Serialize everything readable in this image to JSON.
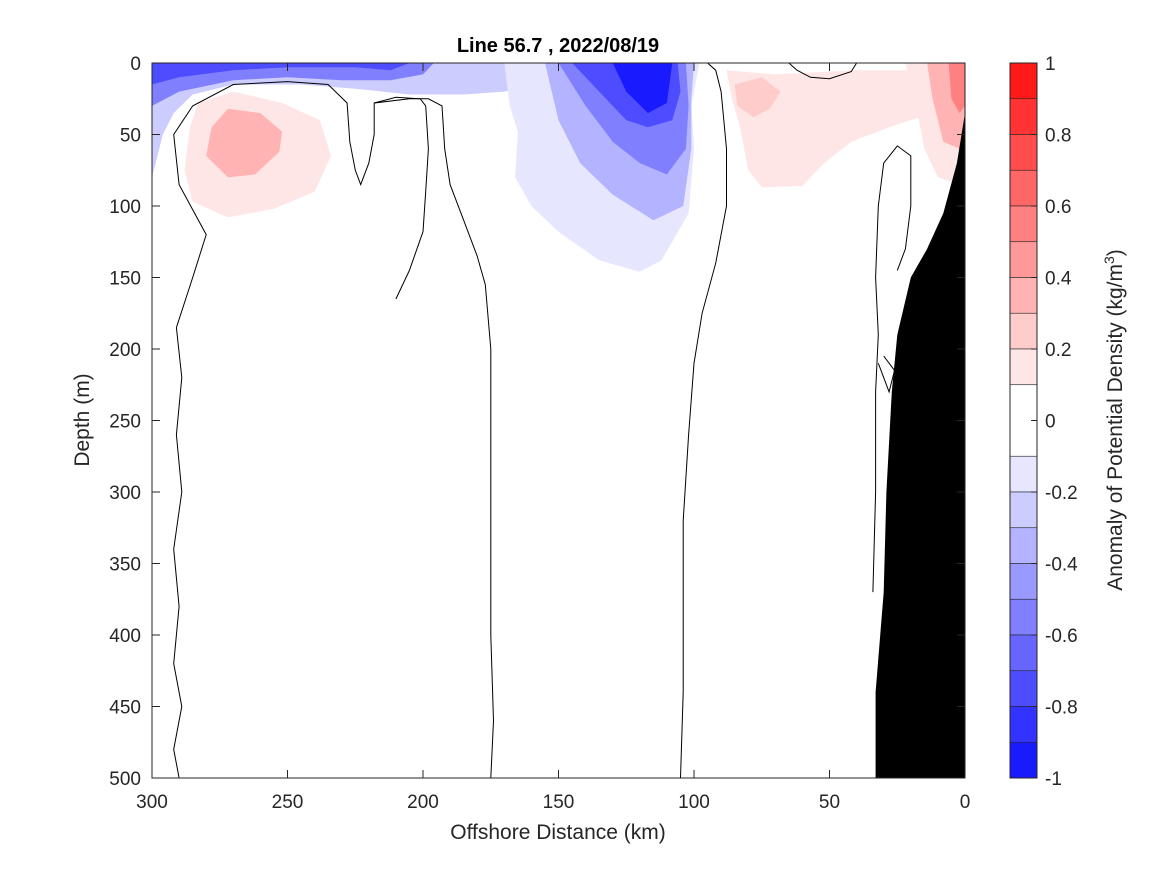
{
  "chart_data": {
    "type": "heatmap",
    "title": "Line 56.7 , 2022/08/19",
    "xlabel": "Offshore Distance (km)",
    "ylabel": "Depth (m)",
    "xlim": [
      300,
      0
    ],
    "ylim": [
      500,
      0
    ],
    "x_reversed": true,
    "y_reversed": true,
    "x_ticks": [
      300,
      250,
      200,
      150,
      100,
      50,
      0
    ],
    "y_ticks": [
      0,
      50,
      100,
      150,
      200,
      250,
      300,
      350,
      400,
      450,
      500
    ],
    "colorbar": {
      "label_main": "Anomaly of Potential Density (kg/m",
      "label_sup": "3",
      "label_end": ")",
      "range": [
        -1,
        1
      ],
      "tick_labels": [
        "1",
        "0.8",
        "0.6",
        "0.4",
        "0.2",
        "0",
        "-0.2",
        "-0.4",
        "-0.6",
        "-0.8",
        "-1"
      ],
      "tick_values": [
        1,
        0.8,
        0.6,
        0.4,
        0.2,
        0,
        -0.2,
        -0.4,
        -0.6,
        -0.8,
        -1
      ],
      "levels": [
        {
          "from": 0.9,
          "to": 1.0,
          "color": "#ff1a1a"
        },
        {
          "from": 0.8,
          "to": 0.9,
          "color": "#ff3333"
        },
        {
          "from": 0.7,
          "to": 0.8,
          "color": "#ff4d4d"
        },
        {
          "from": 0.6,
          "to": 0.7,
          "color": "#ff6666"
        },
        {
          "from": 0.5,
          "to": 0.6,
          "color": "#ff8080"
        },
        {
          "from": 0.4,
          "to": 0.5,
          "color": "#ff9999"
        },
        {
          "from": 0.3,
          "to": 0.4,
          "color": "#ffb3b3"
        },
        {
          "from": 0.2,
          "to": 0.3,
          "color": "#ffcccc"
        },
        {
          "from": 0.1,
          "to": 0.2,
          "color": "#ffe6e6"
        },
        {
          "from": -0.1,
          "to": 0.1,
          "color": "#ffffff"
        },
        {
          "from": -0.2,
          "to": -0.1,
          "color": "#e6e6ff"
        },
        {
          "from": -0.3,
          "to": -0.2,
          "color": "#ccccff"
        },
        {
          "from": -0.4,
          "to": -0.3,
          "color": "#b3b3ff"
        },
        {
          "from": -0.5,
          "to": -0.4,
          "color": "#9999ff"
        },
        {
          "from": -0.6,
          "to": -0.5,
          "color": "#8080ff"
        },
        {
          "from": -0.7,
          "to": -0.6,
          "color": "#6666ff"
        },
        {
          "from": -0.8,
          "to": -0.7,
          "color": "#4d4dff"
        },
        {
          "from": -0.9,
          "to": -0.8,
          "color": "#3333ff"
        },
        {
          "from": -1.0,
          "to": -0.9,
          "color": "#1a1aff"
        }
      ]
    },
    "anomaly_regions": [
      {
        "value": -0.25,
        "color": "#ccccff",
        "points": [
          [
            300,
            0
          ],
          [
            300,
            80
          ],
          [
            296,
            50
          ],
          [
            292,
            35
          ],
          [
            285,
            22
          ],
          [
            270,
            15
          ],
          [
            245,
            15
          ],
          [
            225,
            18
          ],
          [
            205,
            22
          ],
          [
            185,
            22
          ],
          [
            170,
            20
          ],
          [
            160,
            15
          ],
          [
            150,
            0
          ]
        ]
      },
      {
        "value": -0.5,
        "color": "#8080ff",
        "points": [
          [
            300,
            0
          ],
          [
            300,
            30
          ],
          [
            290,
            20
          ],
          [
            270,
            12
          ],
          [
            250,
            10
          ],
          [
            230,
            12
          ],
          [
            212,
            12
          ],
          [
            200,
            8
          ],
          [
            196,
            0
          ]
        ]
      },
      {
        "value": -0.75,
        "color": "#4d4dff",
        "points": [
          [
            300,
            0
          ],
          [
            300,
            15
          ],
          [
            290,
            10
          ],
          [
            270,
            5
          ],
          [
            250,
            3
          ],
          [
            225,
            3
          ],
          [
            212,
            5
          ],
          [
            205,
            0
          ]
        ]
      },
      {
        "value": -0.15,
        "color": "#e6e6ff",
        "points": [
          [
            170,
            0
          ],
          [
            168,
            30
          ],
          [
            165,
            48
          ],
          [
            166,
            80
          ],
          [
            160,
            100
          ],
          [
            150,
            118
          ],
          [
            135,
            138
          ],
          [
            120,
            146
          ],
          [
            112,
            138
          ],
          [
            102,
            105
          ],
          [
            100,
            60
          ],
          [
            101,
            30
          ],
          [
            98,
            0
          ]
        ]
      },
      {
        "value": -0.35,
        "color": "#b3b3ff",
        "points": [
          [
            155,
            0
          ],
          [
            150,
            40
          ],
          [
            142,
            70
          ],
          [
            130,
            92
          ],
          [
            115,
            110
          ],
          [
            104,
            100
          ],
          [
            101,
            60
          ],
          [
            101,
            25
          ],
          [
            100,
            0
          ]
        ]
      },
      {
        "value": -0.55,
        "color": "#8080ff",
        "points": [
          [
            150,
            0
          ],
          [
            140,
            30
          ],
          [
            130,
            55
          ],
          [
            120,
            70
          ],
          [
            110,
            78
          ],
          [
            103,
            60
          ],
          [
            102,
            30
          ],
          [
            103,
            0
          ]
        ]
      },
      {
        "value": -0.75,
        "color": "#4d4dff",
        "points": [
          [
            145,
            0
          ],
          [
            135,
            20
          ],
          [
            125,
            40
          ],
          [
            117,
            45
          ],
          [
            108,
            40
          ],
          [
            105,
            20
          ],
          [
            106,
            0
          ]
        ]
      },
      {
        "value": -0.9,
        "color": "#1a1aff",
        "points": [
          [
            130,
            0
          ],
          [
            125,
            20
          ],
          [
            117,
            35
          ],
          [
            110,
            28
          ],
          [
            108,
            0
          ]
        ]
      },
      {
        "value": 0.15,
        "color": "#ffe6e6",
        "points": [
          [
            286,
            45
          ],
          [
            288,
            75
          ],
          [
            285,
            97
          ],
          [
            272,
            108
          ],
          [
            255,
            102
          ],
          [
            240,
            90
          ],
          [
            234,
            65
          ],
          [
            238,
            40
          ],
          [
            252,
            28
          ],
          [
            270,
            20
          ],
          [
            283,
            28
          ]
        ]
      },
      {
        "value": 0.35,
        "color": "#ffb3b3",
        "points": [
          [
            278,
            45
          ],
          [
            280,
            65
          ],
          [
            272,
            80
          ],
          [
            262,
            78
          ],
          [
            253,
            62
          ],
          [
            252,
            48
          ],
          [
            260,
            35
          ],
          [
            272,
            32
          ]
        ]
      },
      {
        "value": 0.15,
        "color": "#ffe6e6",
        "points": [
          [
            88,
            5
          ],
          [
            86,
            25
          ],
          [
            83,
            45
          ],
          [
            80,
            75
          ],
          [
            75,
            87
          ],
          [
            60,
            86
          ],
          [
            52,
            70
          ],
          [
            42,
            55
          ],
          [
            28,
            45
          ],
          [
            12,
            35
          ],
          [
            0,
            25
          ],
          [
            0,
            5
          ],
          [
            40,
            5
          ],
          [
            70,
            8
          ]
        ]
      },
      {
        "value": 0.3,
        "color": "#ffcccc",
        "points": [
          [
            85,
            15
          ],
          [
            84,
            30
          ],
          [
            78,
            38
          ],
          [
            72,
            32
          ],
          [
            68,
            20
          ],
          [
            75,
            10
          ]
        ]
      },
      {
        "value": 0.2,
        "color": "#ffe6e6",
        "points": [
          [
            22,
            0
          ],
          [
            18,
            30
          ],
          [
            15,
            60
          ],
          [
            10,
            80
          ],
          [
            2,
            85
          ],
          [
            0,
            80
          ],
          [
            0,
            0
          ]
        ]
      },
      {
        "value": 0.4,
        "color": "#ffb3b3",
        "points": [
          [
            14,
            0
          ],
          [
            12,
            25
          ],
          [
            8,
            55
          ],
          [
            2,
            60
          ],
          [
            0,
            55
          ],
          [
            0,
            0
          ]
        ]
      },
      {
        "value": 0.55,
        "color": "#ff8080",
        "points": [
          [
            6,
            0
          ],
          [
            5,
            25
          ],
          [
            2,
            35
          ],
          [
            0,
            30
          ],
          [
            0,
            0
          ]
        ]
      }
    ],
    "zero_contours": [
      [
        [
          290,
          500
        ],
        [
          292,
          480
        ],
        [
          289,
          450
        ],
        [
          292,
          420
        ],
        [
          290,
          380
        ],
        [
          292,
          340
        ],
        [
          289,
          300
        ],
        [
          291,
          260
        ],
        [
          289,
          220
        ],
        [
          291,
          185
        ],
        [
          285,
          150
        ],
        [
          280,
          120
        ],
        [
          290,
          85
        ],
        [
          292,
          50
        ],
        [
          285,
          30
        ],
        [
          270,
          15
        ],
        [
          250,
          13
        ],
        [
          235,
          15
        ],
        [
          228,
          28
        ],
        [
          227,
          55
        ],
        [
          225,
          75
        ],
        [
          223,
          85
        ],
        [
          220,
          70
        ],
        [
          218,
          50
        ],
        [
          218,
          28
        ],
        [
          205,
          25
        ],
        [
          198,
          25
        ],
        [
          193,
          30
        ],
        [
          192,
          60
        ],
        [
          190,
          85
        ],
        [
          185,
          110
        ],
        [
          180,
          135
        ],
        [
          177,
          155
        ],
        [
          175,
          200
        ],
        [
          175,
          260
        ],
        [
          175,
          320
        ],
        [
          175,
          400
        ],
        [
          174,
          460
        ],
        [
          175,
          500
        ]
      ],
      [
        [
          210,
          165
        ],
        [
          205,
          145
        ],
        [
          200,
          118
        ],
        [
          199,
          90
        ],
        [
          198,
          60
        ],
        [
          199,
          30
        ],
        [
          201,
          25
        ],
        [
          210,
          24
        ],
        [
          218,
          28
        ]
      ],
      [
        [
          105,
          500
        ],
        [
          104,
          440
        ],
        [
          104,
          380
        ],
        [
          104,
          320
        ],
        [
          102,
          260
        ],
        [
          100,
          210
        ],
        [
          97,
          175
        ],
        [
          92,
          140
        ],
        [
          88,
          100
        ],
        [
          88,
          60
        ],
        [
          90,
          20
        ],
        [
          92,
          5
        ],
        [
          95,
          0
        ]
      ],
      [
        [
          65,
          0
        ],
        [
          62,
          5
        ],
        [
          57,
          10
        ],
        [
          50,
          11
        ],
        [
          42,
          6
        ],
        [
          40,
          0
        ]
      ],
      [
        [
          34,
          370
        ],
        [
          33,
          300
        ],
        [
          33,
          230
        ],
        [
          32,
          190
        ],
        [
          33,
          150
        ],
        [
          32,
          100
        ],
        [
          30,
          70
        ],
        [
          25,
          58
        ],
        [
          20,
          65
        ],
        [
          20,
          100
        ],
        [
          22,
          130
        ],
        [
          25,
          145
        ]
      ],
      [
        [
          32,
          210
        ],
        [
          30,
          220
        ],
        [
          28,
          230
        ],
        [
          26,
          215
        ],
        [
          30,
          205
        ]
      ]
    ],
    "bathymetry": [
      [
        33,
        500
      ],
      [
        33,
        440
      ],
      [
        30,
        370
      ],
      [
        29,
        300
      ],
      [
        27,
        230
      ],
      [
        25,
        190
      ],
      [
        20,
        150
      ],
      [
        14,
        130
      ],
      [
        8,
        105
      ],
      [
        3,
        70
      ],
      [
        0,
        35
      ],
      [
        0,
        500
      ]
    ]
  }
}
